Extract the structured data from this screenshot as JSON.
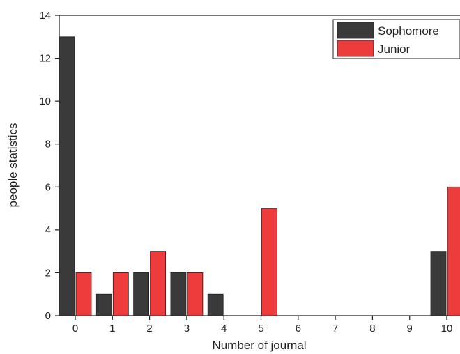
{
  "chart_data": {
    "type": "bar",
    "title": "",
    "xlabel": "Number of journal",
    "ylabel": "people statistics",
    "categories": [
      "0",
      "1",
      "2",
      "3",
      "4",
      "5",
      "6",
      "7",
      "8",
      "9",
      "10"
    ],
    "series": [
      {
        "name": "Sophomore",
        "color": "#3a3a3a",
        "values": [
          13,
          1,
          2,
          2,
          1,
          0,
          0,
          0,
          0,
          0,
          3
        ]
      },
      {
        "name": "Junior",
        "color": "#ee3b3b",
        "values": [
          2,
          2,
          3,
          2,
          0,
          5,
          0,
          0,
          0,
          0,
          6
        ]
      }
    ],
    "ylim": [
      0,
      14
    ],
    "yticks": [
      "0",
      "2",
      "4",
      "6",
      "8",
      "10",
      "12",
      "14"
    ],
    "grid": false,
    "legend_position": "top-right"
  }
}
